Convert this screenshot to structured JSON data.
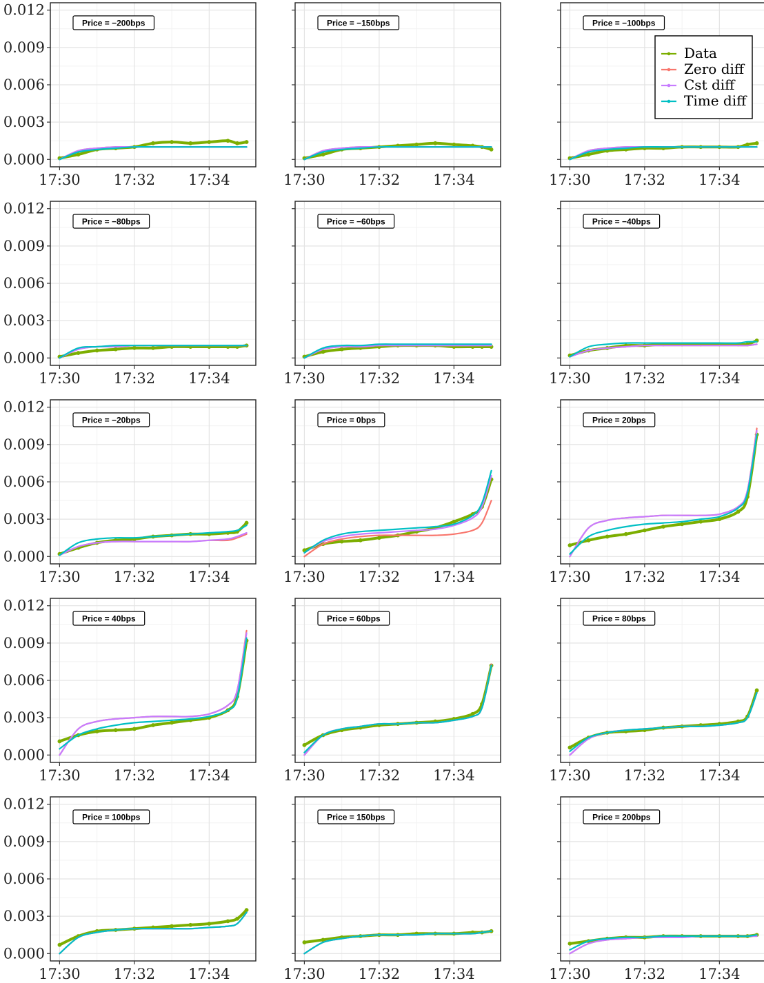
{
  "chart_data": {
    "type": "line",
    "layout": "facet-grid",
    "grid": true,
    "legend_position": "top-right",
    "y_ticks": [
      "0.000",
      "0.003",
      "0.006",
      "0.009",
      "0.012"
    ],
    "y_tick_values": [
      0.0,
      0.003,
      0.006,
      0.009,
      0.012
    ],
    "x_ticks": [
      "17:30",
      "17:32",
      "17:34"
    ],
    "x_tick_values": [
      0,
      2,
      4
    ],
    "xlim": [
      "17:30",
      "17:35"
    ],
    "ylim": [
      0.0,
      0.012
    ],
    "x_sample": [
      0,
      0.5,
      1,
      1.5,
      2,
      2.5,
      3,
      3.5,
      4,
      4.5,
      4.75,
      5
    ],
    "series_names": [
      "Data",
      "Zero diff",
      "Cst diff",
      "Time diff"
    ],
    "series_colors": [
      "#7CAE00",
      "#F8766D",
      "#C77CFF",
      "#00BFC4"
    ],
    "panels": [
      {
        "label": "Price = −200bps",
        "data": [
          0.0001,
          0.0004,
          0.0008,
          0.0009,
          0.001,
          0.0013,
          0.0014,
          0.0013,
          0.0014,
          0.0015,
          0.0013,
          0.0014
        ],
        "zero": [
          0.0,
          0.0007,
          0.0009,
          0.001,
          0.001,
          0.001,
          0.001,
          0.001,
          0.001,
          0.001,
          0.001,
          0.001
        ],
        "cst": [
          0.0,
          0.0007,
          0.0009,
          0.001,
          0.001,
          0.001,
          0.001,
          0.001,
          0.001,
          0.001,
          0.001,
          0.001
        ],
        "time": [
          0.0,
          0.0006,
          0.0008,
          0.0009,
          0.001,
          0.001,
          0.001,
          0.001,
          0.001,
          0.001,
          0.001,
          0.001
        ]
      },
      {
        "label": "Price = −150bps",
        "data": [
          0.0001,
          0.0004,
          0.0008,
          0.0009,
          0.001,
          0.0011,
          0.0012,
          0.0013,
          0.0012,
          0.0011,
          0.001,
          0.0008
        ],
        "zero": [
          0.0,
          0.0007,
          0.0009,
          0.001,
          0.001,
          0.001,
          0.001,
          0.001,
          0.001,
          0.001,
          0.001,
          0.001
        ],
        "cst": [
          0.0,
          0.0007,
          0.0009,
          0.001,
          0.001,
          0.001,
          0.001,
          0.001,
          0.001,
          0.001,
          0.001,
          0.001
        ],
        "time": [
          0.0,
          0.0006,
          0.0008,
          0.0009,
          0.001,
          0.001,
          0.001,
          0.001,
          0.001,
          0.001,
          0.001,
          0.001
        ]
      },
      {
        "label": "Price = −100bps",
        "data": [
          0.0001,
          0.0004,
          0.0007,
          0.0008,
          0.0009,
          0.0009,
          0.001,
          0.001,
          0.001,
          0.001,
          0.0012,
          0.0013
        ],
        "zero": [
          0.0,
          0.0007,
          0.0009,
          0.001,
          0.001,
          0.001,
          0.001,
          0.001,
          0.001,
          0.001,
          0.001,
          0.001
        ],
        "cst": [
          0.0,
          0.0007,
          0.0009,
          0.001,
          0.001,
          0.001,
          0.001,
          0.001,
          0.001,
          0.001,
          0.001,
          0.001
        ],
        "time": [
          0.0,
          0.0006,
          0.0008,
          0.0009,
          0.001,
          0.001,
          0.001,
          0.001,
          0.001,
          0.001,
          0.001,
          0.001
        ]
      },
      {
        "label": "Price = −80bps",
        "data": [
          0.0001,
          0.0004,
          0.0006,
          0.0007,
          0.0008,
          0.0008,
          0.0009,
          0.0009,
          0.0009,
          0.0009,
          0.0009,
          0.001
        ],
        "zero": [
          0.0,
          0.0007,
          0.0009,
          0.0009,
          0.001,
          0.001,
          0.001,
          0.001,
          0.001,
          0.001,
          0.001,
          0.001
        ],
        "cst": [
          0.0,
          0.0007,
          0.0009,
          0.0009,
          0.001,
          0.001,
          0.001,
          0.001,
          0.001,
          0.001,
          0.001,
          0.001
        ],
        "time": [
          0.0,
          0.0008,
          0.0009,
          0.001,
          0.001,
          0.001,
          0.001,
          0.001,
          0.001,
          0.001,
          0.001,
          0.001
        ]
      },
      {
        "label": "Price = −60bps",
        "data": [
          0.0001,
          0.0005,
          0.0007,
          0.0008,
          0.0009,
          0.001,
          0.001,
          0.001,
          0.0009,
          0.0009,
          0.0009,
          0.0009
        ],
        "zero": [
          0.0,
          0.0007,
          0.0009,
          0.0009,
          0.001,
          0.001,
          0.001,
          0.001,
          0.001,
          0.001,
          0.001,
          0.001
        ],
        "cst": [
          0.0,
          0.0007,
          0.0009,
          0.0009,
          0.001,
          0.001,
          0.001,
          0.001,
          0.001,
          0.001,
          0.001,
          0.001
        ],
        "time": [
          0.0,
          0.0008,
          0.001,
          0.001,
          0.0011,
          0.0011,
          0.0011,
          0.0011,
          0.0011,
          0.0011,
          0.0011,
          0.0011
        ]
      },
      {
        "label": "Price = −40bps",
        "data": [
          0.0002,
          0.0006,
          0.0008,
          0.001,
          0.001,
          0.0011,
          0.0011,
          0.0011,
          0.0011,
          0.0011,
          0.0011,
          0.0014
        ],
        "zero": [
          0.0001,
          0.0006,
          0.0008,
          0.0009,
          0.001,
          0.001,
          0.001,
          0.001,
          0.001,
          0.001,
          0.001,
          0.0011
        ],
        "cst": [
          0.0001,
          0.0006,
          0.0008,
          0.0009,
          0.001,
          0.001,
          0.001,
          0.001,
          0.001,
          0.001,
          0.001,
          0.0011
        ],
        "time": [
          0.0001,
          0.0009,
          0.0011,
          0.0012,
          0.0012,
          0.0012,
          0.0012,
          0.0012,
          0.0012,
          0.0012,
          0.0013,
          0.0013
        ]
      },
      {
        "label": "Price = −20bps",
        "data": [
          0.0002,
          0.0007,
          0.0011,
          0.0013,
          0.0014,
          0.0016,
          0.0017,
          0.0018,
          0.0018,
          0.0019,
          0.002,
          0.0027
        ],
        "zero": [
          0.0001,
          0.0008,
          0.0011,
          0.0012,
          0.0012,
          0.0012,
          0.0012,
          0.0012,
          0.0013,
          0.0013,
          0.0015,
          0.0018
        ],
        "cst": [
          0.0001,
          0.0008,
          0.0011,
          0.0012,
          0.0012,
          0.0012,
          0.0012,
          0.0012,
          0.0013,
          0.0014,
          0.0016,
          0.0019
        ],
        "time": [
          0.0001,
          0.0011,
          0.0014,
          0.0015,
          0.0015,
          0.0016,
          0.0017,
          0.0018,
          0.0019,
          0.002,
          0.0021,
          0.0025
        ]
      },
      {
        "label": "Price = 0bps",
        "data": [
          0.0005,
          0.001,
          0.0012,
          0.0013,
          0.0015,
          0.0017,
          0.002,
          0.0023,
          0.0028,
          0.0034,
          0.004,
          0.0062
        ],
        "zero": [
          0.0,
          0.001,
          0.0014,
          0.0016,
          0.0017,
          0.0017,
          0.0017,
          0.0017,
          0.0018,
          0.0021,
          0.0027,
          0.0045
        ],
        "cst": [
          0.0003,
          0.0012,
          0.0016,
          0.0018,
          0.0019,
          0.002,
          0.0021,
          0.0022,
          0.0025,
          0.0031,
          0.004,
          0.0065
        ],
        "time": [
          0.0003,
          0.0013,
          0.0018,
          0.002,
          0.0021,
          0.0022,
          0.0023,
          0.0024,
          0.0026,
          0.0033,
          0.0043,
          0.0069
        ]
      },
      {
        "label": "Price = 20bps",
        "data": [
          0.0009,
          0.0013,
          0.0016,
          0.0018,
          0.0021,
          0.0024,
          0.0026,
          0.0028,
          0.003,
          0.0036,
          0.0048,
          0.0098
        ],
        "zero": [
          0.0,
          0.0023,
          0.0029,
          0.0031,
          0.0032,
          0.0033,
          0.0033,
          0.0033,
          0.0034,
          0.004,
          0.0053,
          0.0103
        ],
        "cst": [
          0.0,
          0.0023,
          0.0029,
          0.0031,
          0.0032,
          0.0033,
          0.0033,
          0.0033,
          0.0034,
          0.004,
          0.0053,
          0.0101
        ],
        "time": [
          0.0002,
          0.0016,
          0.0021,
          0.0024,
          0.0026,
          0.0027,
          0.0028,
          0.003,
          0.0032,
          0.0039,
          0.0051,
          0.0098
        ]
      },
      {
        "label": "Price = 40bps",
        "data": [
          0.0011,
          0.0016,
          0.0019,
          0.002,
          0.0021,
          0.0024,
          0.0026,
          0.0028,
          0.003,
          0.0036,
          0.0047,
          0.0092
        ],
        "zero": [
          0.0,
          0.0021,
          0.0027,
          0.0029,
          0.003,
          0.0031,
          0.0031,
          0.0031,
          0.0033,
          0.004,
          0.0052,
          0.01
        ],
        "cst": [
          0.0,
          0.0021,
          0.0027,
          0.0029,
          0.003,
          0.0031,
          0.0031,
          0.0031,
          0.0033,
          0.004,
          0.0052,
          0.0098
        ],
        "time": [
          0.0005,
          0.0016,
          0.0021,
          0.0024,
          0.0026,
          0.0027,
          0.0028,
          0.0029,
          0.0031,
          0.0036,
          0.0046,
          0.0094
        ]
      },
      {
        "label": "Price = 60bps",
        "data": [
          0.0008,
          0.0016,
          0.002,
          0.0022,
          0.0024,
          0.0025,
          0.0026,
          0.0027,
          0.0029,
          0.0033,
          0.0041,
          0.0072
        ],
        "zero": [
          0.0,
          0.0016,
          0.0021,
          0.0023,
          0.0025,
          0.0025,
          0.0026,
          0.0026,
          0.0028,
          0.0031,
          0.0038,
          0.0073
        ],
        "cst": [
          0.0,
          0.0016,
          0.0021,
          0.0023,
          0.0025,
          0.0025,
          0.0026,
          0.0026,
          0.0028,
          0.0031,
          0.0038,
          0.0072
        ],
        "time": [
          0.0002,
          0.0016,
          0.0021,
          0.0023,
          0.0025,
          0.0025,
          0.0026,
          0.0026,
          0.0028,
          0.0031,
          0.0038,
          0.0072
        ]
      },
      {
        "label": "Price = 80bps",
        "data": [
          0.0006,
          0.0014,
          0.0018,
          0.0019,
          0.002,
          0.0022,
          0.0023,
          0.0024,
          0.0025,
          0.0027,
          0.0031,
          0.0052
        ],
        "zero": [
          0.0,
          0.0013,
          0.0018,
          0.002,
          0.0021,
          0.0022,
          0.0023,
          0.0023,
          0.0024,
          0.0026,
          0.003,
          0.005
        ],
        "cst": [
          0.0,
          0.0013,
          0.0018,
          0.002,
          0.0021,
          0.0022,
          0.0023,
          0.0023,
          0.0024,
          0.0026,
          0.003,
          0.005
        ],
        "time": [
          0.0003,
          0.0014,
          0.0018,
          0.002,
          0.0021,
          0.0022,
          0.0023,
          0.0023,
          0.0024,
          0.0026,
          0.003,
          0.005
        ]
      },
      {
        "label": "Price = 100bps",
        "data": [
          0.0007,
          0.0014,
          0.0018,
          0.0019,
          0.002,
          0.0021,
          0.0022,
          0.0023,
          0.0024,
          0.0026,
          0.0028,
          0.0035
        ],
        "zero": [
          0.0,
          0.0013,
          0.0017,
          0.0019,
          0.002,
          0.002,
          0.002,
          0.002,
          0.0021,
          0.0022,
          0.0024,
          0.0033
        ],
        "cst": [
          0.0,
          0.0013,
          0.0017,
          0.0019,
          0.002,
          0.002,
          0.002,
          0.002,
          0.0021,
          0.0022,
          0.0024,
          0.0033
        ],
        "time": [
          0.0,
          0.0013,
          0.0017,
          0.0019,
          0.002,
          0.002,
          0.002,
          0.002,
          0.0021,
          0.0022,
          0.0024,
          0.0033
        ]
      },
      {
        "label": "Price = 150bps",
        "data": [
          0.0009,
          0.0011,
          0.0013,
          0.0014,
          0.0015,
          0.0015,
          0.0016,
          0.0016,
          0.0016,
          0.0017,
          0.0017,
          0.0018
        ],
        "zero": [
          0.0,
          0.0009,
          0.0012,
          0.0014,
          0.0015,
          0.0015,
          0.0015,
          0.0016,
          0.0016,
          0.0016,
          0.0017,
          0.0018
        ],
        "cst": [
          0.0,
          0.0009,
          0.0012,
          0.0014,
          0.0015,
          0.0015,
          0.0015,
          0.0016,
          0.0016,
          0.0016,
          0.0017,
          0.0018
        ],
        "time": [
          0.0,
          0.0009,
          0.0012,
          0.0014,
          0.0015,
          0.0015,
          0.0015,
          0.0016,
          0.0016,
          0.0016,
          0.0017,
          0.0018
        ]
      },
      {
        "label": "Price = 200bps",
        "data": [
          0.0008,
          0.001,
          0.0012,
          0.0013,
          0.0013,
          0.0014,
          0.0014,
          0.0014,
          0.0014,
          0.0014,
          0.0014,
          0.0015
        ],
        "zero": [
          0.0,
          0.0008,
          0.0011,
          0.0012,
          0.0013,
          0.0013,
          0.0013,
          0.0014,
          0.0014,
          0.0014,
          0.0014,
          0.0014
        ],
        "cst": [
          0.0,
          0.0008,
          0.0011,
          0.0012,
          0.0013,
          0.0013,
          0.0013,
          0.0014,
          0.0014,
          0.0014,
          0.0014,
          0.0014
        ],
        "time": [
          0.0003,
          0.001,
          0.0012,
          0.0013,
          0.0013,
          0.0014,
          0.0014,
          0.0014,
          0.0014,
          0.0014,
          0.0014,
          0.0015
        ]
      }
    ]
  }
}
